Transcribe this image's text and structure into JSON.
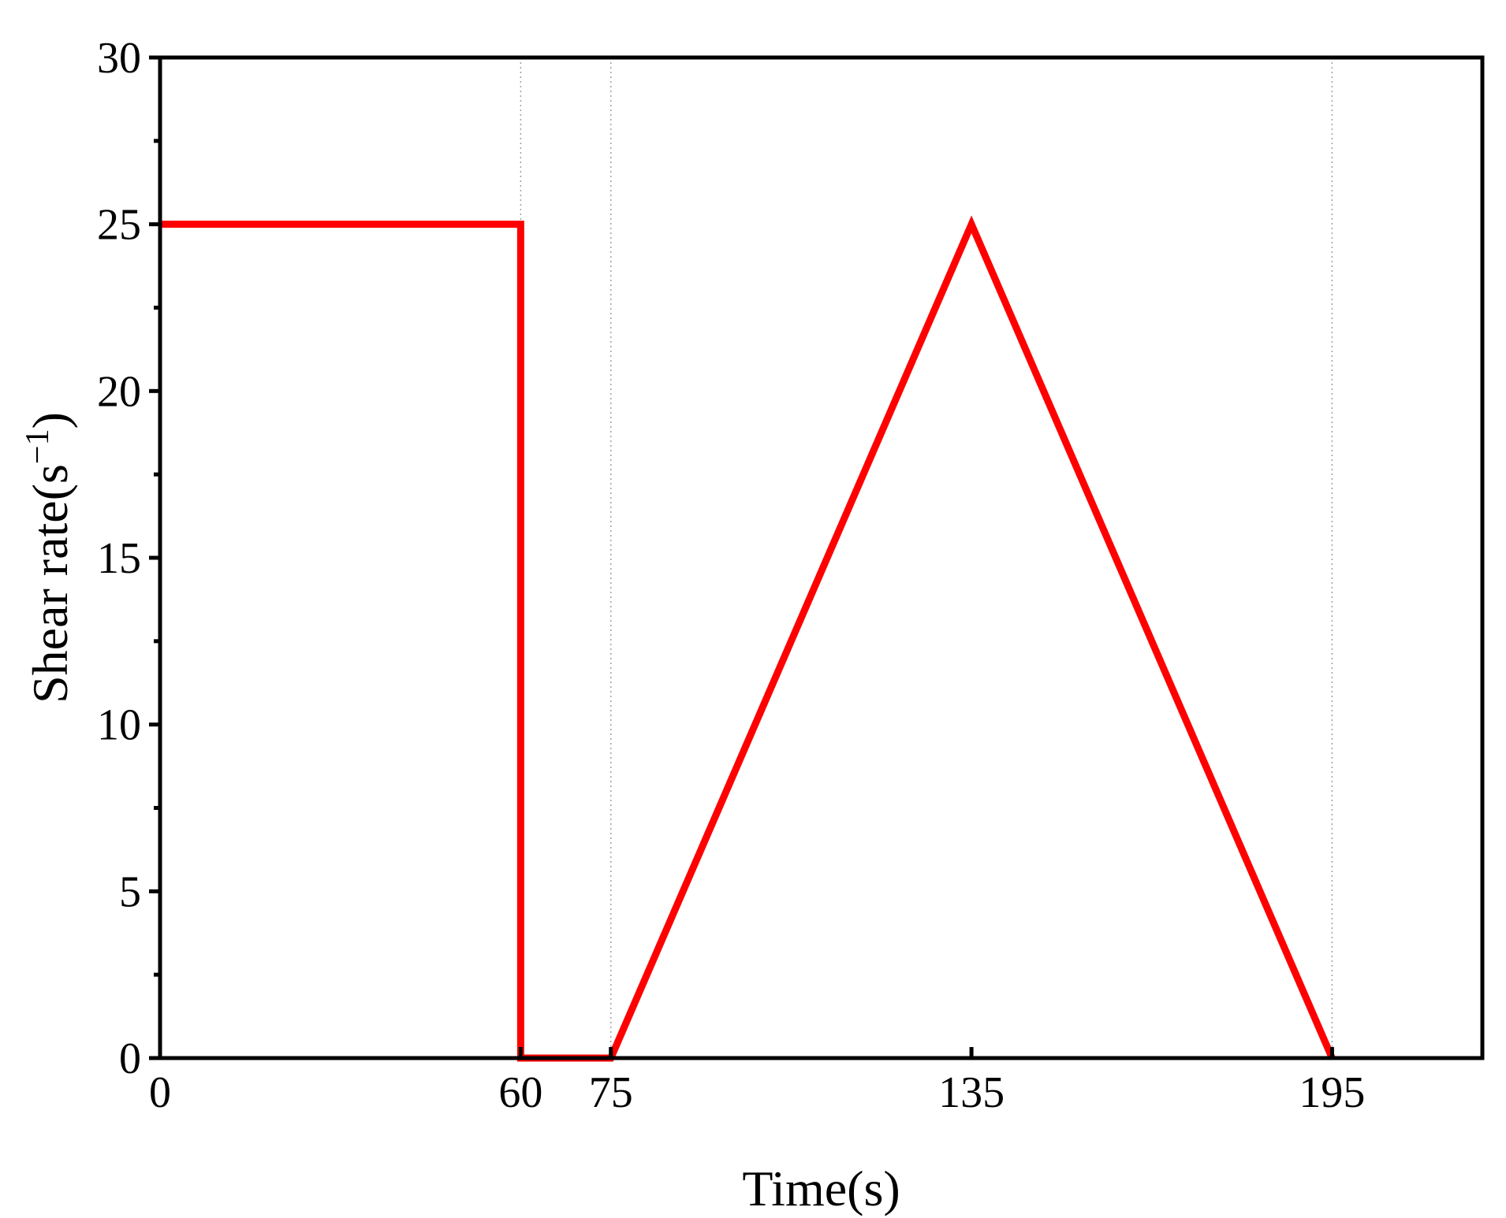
{
  "chart_data": {
    "type": "line",
    "title": "",
    "xlabel": "Time(s)",
    "ylabel": {
      "main": "Shear rate(s",
      "superscript": "−1",
      "close": ")"
    },
    "xlim": [
      0,
      220
    ],
    "ylim": [
      0,
      30
    ],
    "x_ticks": [
      0,
      60,
      75,
      135,
      195
    ],
    "x_tick_labels": [
      "0",
      "60",
      "75",
      "135",
      "195"
    ],
    "y_ticks": [
      0,
      5,
      10,
      15,
      20,
      25,
      30
    ],
    "y_tick_labels": [
      "0",
      "5",
      "10",
      "15",
      "20",
      "25",
      "30"
    ],
    "y_minor_ticks": [
      2.5,
      7.5,
      12.5,
      17.5,
      22.5,
      27.5
    ],
    "reference_lines_x": [
      60,
      75,
      195
    ],
    "grid": false,
    "legend": "none",
    "series": [
      {
        "color": "#ff0000",
        "x": [
          0,
          60,
          60,
          75,
          135,
          195
        ],
        "y": [
          25,
          25,
          0,
          0,
          25,
          0
        ]
      }
    ]
  }
}
